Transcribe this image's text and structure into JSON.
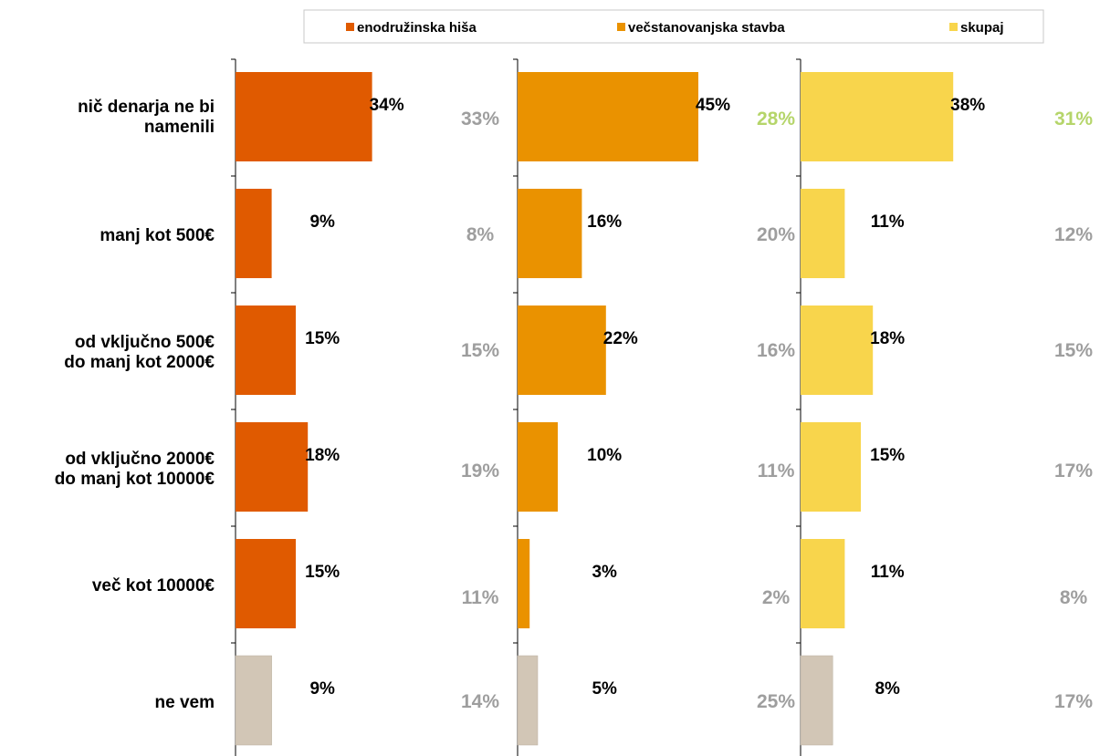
{
  "chart_data": {
    "type": "bar",
    "orientation": "horizontal",
    "categories": [
      "nič denarja ne bi namenili",
      "manj kot 500€",
      "od vključno 500€ do manj kot 2000€",
      "od vključno 2000€ do manj kot 10000€",
      "več kot 10000€",
      "ne vem"
    ],
    "series": [
      {
        "name": "enodružinska hiša",
        "color": "#E05A00",
        "values": [
          34,
          9,
          15,
          18,
          15,
          9
        ],
        "value_labels": [
          "34%",
          "9%",
          "15%",
          "18%",
          "15%",
          "9%"
        ],
        "comparison_labels": [
          "33%",
          "8%",
          "15%",
          "19%",
          "11%",
          "14%"
        ],
        "comparison_colors": [
          "#9e9e9e",
          "#9e9e9e",
          "#9e9e9e",
          "#9e9e9e",
          "#9e9e9e",
          "#9e9e9e"
        ]
      },
      {
        "name": "večstanovanjska stavba",
        "color": "#EA9200",
        "values": [
          45,
          16,
          22,
          10,
          3,
          5
        ],
        "value_labels": [
          "45%",
          "16%",
          "22%",
          "10%",
          "3%",
          "5%"
        ],
        "comparison_labels": [
          "28%",
          "20%",
          "16%",
          "11%",
          "2%",
          "25%"
        ],
        "comparison_colors": [
          "#b5d56a",
          "#9e9e9e",
          "#9e9e9e",
          "#9e9e9e",
          "#9e9e9e",
          "#9e9e9e"
        ]
      },
      {
        "name": "skupaj",
        "color": "#F8D54C",
        "values": [
          38,
          11,
          18,
          15,
          11,
          8
        ],
        "value_labels": [
          "38%",
          "11%",
          "18%",
          "15%",
          "11%",
          "8%"
        ],
        "comparison_labels": [
          "31%",
          "12%",
          "15%",
          "17%",
          "8%",
          "17%"
        ],
        "comparison_colors": [
          "#b5d56a",
          "#9e9e9e",
          "#9e9e9e",
          "#9e9e9e",
          "#9e9e9e",
          "#9e9e9e"
        ]
      }
    ],
    "special_category_color": "#D2C6B6",
    "special_category_index": 5,
    "legend": {
      "position": "top",
      "entries": [
        "enodružinska hiša",
        "večstanovanjska stavba",
        "skupaj"
      ]
    },
    "grid": false
  }
}
